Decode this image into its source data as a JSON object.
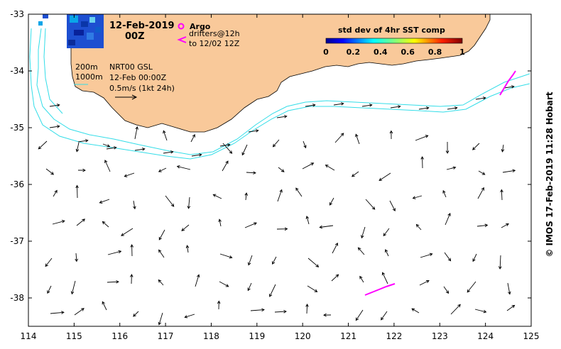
{
  "header": {
    "date": "12-Feb-2019",
    "time": "00Z"
  },
  "legend_argo": {
    "argo_label": "Argo",
    "drifters_line1": "drifters@12h",
    "drifters_line2": "to 12/02 12Z",
    "argo_color": "#ff00ff",
    "drifter_color": "#ff00ff"
  },
  "colorbar": {
    "title": "std dev of 4hr SST comp",
    "ticks": [
      "0",
      "0.2",
      "0.4",
      "0.6",
      "0.8",
      "1"
    ]
  },
  "info": {
    "isobath_200": "200m",
    "isobath_1000": "1000m",
    "product": "NRT00 GSL",
    "product_time": "12-Feb 00:00Z",
    "scale": "0.5m/s (1kt 24h)"
  },
  "axes": {
    "x_ticks": [
      "114",
      "115",
      "116",
      "117",
      "118",
      "119",
      "120",
      "121",
      "122",
      "123",
      "124",
      "125"
    ],
    "y_ticks": [
      "-33",
      "-34",
      "-35",
      "-36",
      "-37",
      "-38"
    ],
    "x_range": [
      114,
      125
    ],
    "y_range": [
      -38.5,
      -33
    ]
  },
  "credit": "© IMOS 17-Feb-2019 11:28 Hobart",
  "colors": {
    "land": "#f9c99a",
    "isobath": "#33dde8",
    "arrow": "#000000",
    "colorbar_low": "#00008f",
    "colorbar_high": "#800000"
  }
}
